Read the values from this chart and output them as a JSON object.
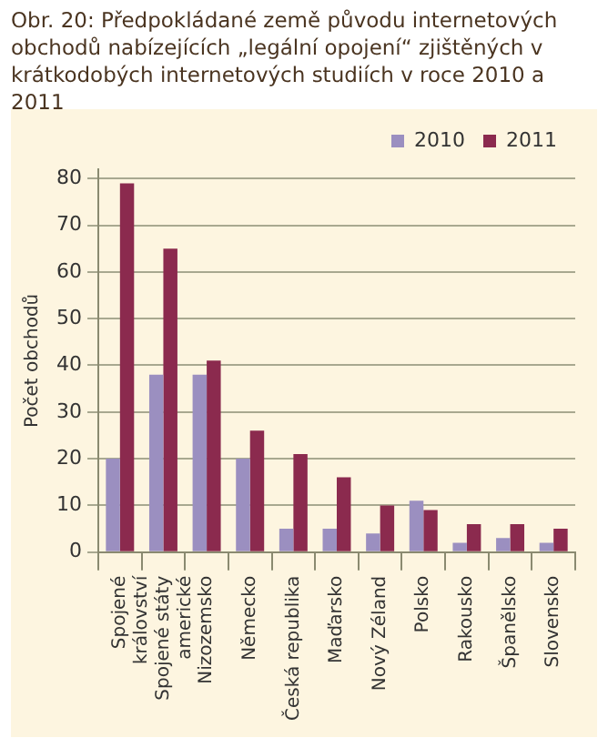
{
  "chart_data": {
    "type": "bar",
    "title": "Obr. 20: Předpokládané země původu internetových obchodů nabízejících „legální opojení“ zjištěných v krátkodobých internetových studiích v roce 2010 a 2011",
    "ylabel": "Počet obchodů",
    "categories": [
      "Spojené království",
      "Spojené státy americké",
      "Nizozemsko",
      "Německo",
      "Česká republika",
      "Maďarsko",
      "Nový Zéland",
      "Polsko",
      "Rakousko",
      "Španělsko",
      "Slovensko"
    ],
    "series": [
      {
        "name": "2010",
        "color": "#9b8fc0",
        "values": [
          20,
          38,
          38,
          20,
          5,
          5,
          4,
          11,
          2,
          3,
          2
        ]
      },
      {
        "name": "2011",
        "color": "#8b2a4e",
        "values": [
          79,
          65,
          41,
          26,
          21,
          16,
          10,
          9,
          6,
          6,
          5
        ]
      }
    ],
    "ylim": [
      0,
      82
    ],
    "yticks": [
      0,
      10,
      20,
      30,
      40,
      50,
      60,
      70,
      80
    ],
    "grid": "y",
    "legend": "top right"
  }
}
